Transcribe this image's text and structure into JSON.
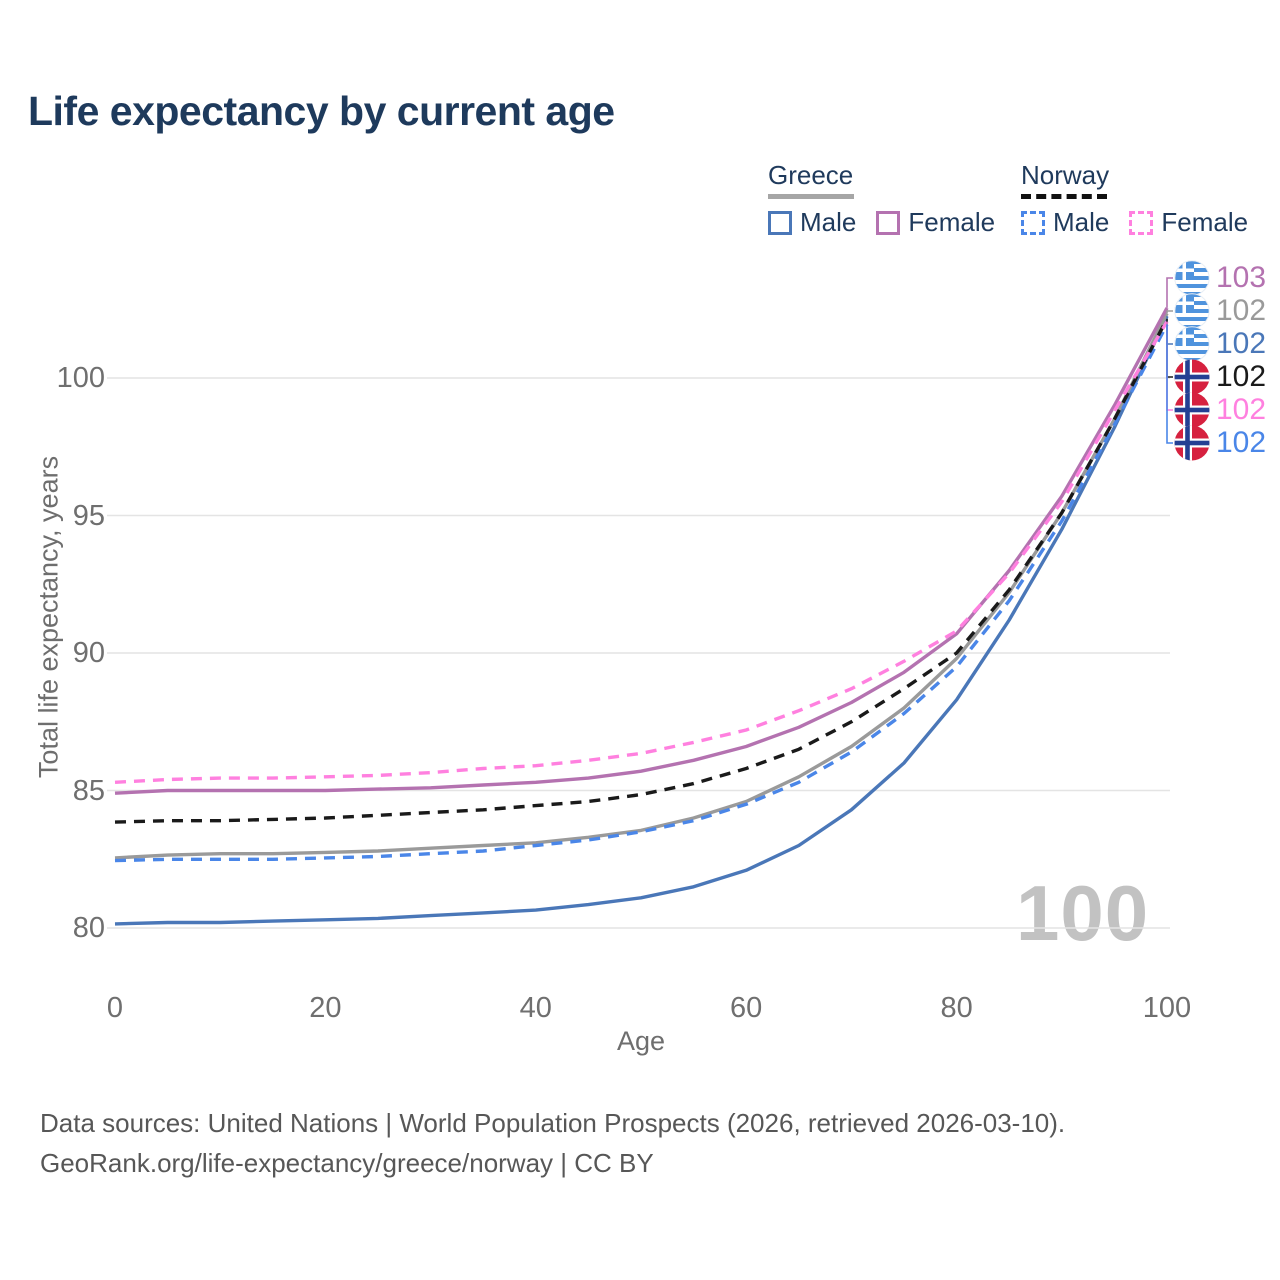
{
  "title": "Life expectancy by current age",
  "watermark": "100",
  "legend": {
    "groups": [
      {
        "name": "Greece",
        "style": "solid",
        "line_color": "#a6a6a6",
        "items": [
          {
            "label": "Male",
            "color": "#4a77b8"
          },
          {
            "label": "Female",
            "color": "#b472b0"
          }
        ]
      },
      {
        "name": "Norway",
        "style": "dashed",
        "line_color": "#111111",
        "items": [
          {
            "label": "Male",
            "color": "#4a86e8"
          },
          {
            "label": "Female",
            "color": "#ff80df"
          }
        ]
      }
    ]
  },
  "axes": {
    "x": {
      "title": "Age",
      "ticks": [
        0,
        20,
        40,
        60,
        80,
        100
      ]
    },
    "y": {
      "title": "Total life expectancy, years",
      "ticks": [
        80,
        85,
        90,
        95,
        100
      ]
    }
  },
  "chart_data": {
    "type": "line",
    "title": "Life expectancy by current age",
    "xlabel": "Age",
    "ylabel": "Total life expectancy, years",
    "xlim": [
      0,
      100
    ],
    "ylim": [
      78.5,
      103.5
    ],
    "grid": "horizontal",
    "x": [
      0,
      5,
      10,
      15,
      20,
      25,
      30,
      35,
      40,
      45,
      50,
      55,
      60,
      65,
      70,
      75,
      80,
      85,
      90,
      95,
      100
    ],
    "series": [
      {
        "name": "Greece Male",
        "country": "Greece",
        "sex": "Male",
        "color": "#4a77b8",
        "dash": "solid",
        "values": [
          80.15,
          80.2,
          80.2,
          80.25,
          80.3,
          80.35,
          80.45,
          80.55,
          80.65,
          80.85,
          81.1,
          81.5,
          82.1,
          83.0,
          84.3,
          86.0,
          88.3,
          91.2,
          94.5,
          98.2,
          102.25
        ]
      },
      {
        "name": "Greece Both sexes",
        "country": "Greece",
        "sex": "Both",
        "color": "#9a9a9a",
        "dash": "solid",
        "values": [
          82.55,
          82.65,
          82.7,
          82.7,
          82.75,
          82.8,
          82.9,
          83.0,
          83.1,
          83.3,
          83.55,
          84.0,
          84.6,
          85.5,
          86.6,
          88.0,
          89.8,
          92.2,
          95.1,
          98.5,
          102.35
        ]
      },
      {
        "name": "Greece Female",
        "country": "Greece",
        "sex": "Female",
        "color": "#b472b0",
        "dash": "solid",
        "values": [
          84.9,
          85.0,
          85.0,
          85.0,
          85.0,
          85.05,
          85.1,
          85.2,
          85.3,
          85.45,
          85.7,
          86.1,
          86.6,
          87.3,
          88.2,
          89.3,
          90.7,
          93.0,
          95.7,
          99.0,
          102.55
        ]
      },
      {
        "name": "Norway Male",
        "country": "Norway",
        "sex": "Male",
        "color": "#4a86e8",
        "dash": "dashed",
        "values": [
          82.45,
          82.5,
          82.5,
          82.5,
          82.55,
          82.6,
          82.7,
          82.8,
          83.0,
          83.2,
          83.5,
          83.9,
          84.5,
          85.3,
          86.4,
          87.8,
          89.5,
          91.9,
          94.8,
          98.3,
          101.95
        ]
      },
      {
        "name": "Norway Both sexes",
        "country": "Norway",
        "sex": "Both",
        "color": "#1a1a1a",
        "dash": "dashed",
        "values": [
          83.85,
          83.9,
          83.9,
          83.95,
          84.0,
          84.1,
          84.2,
          84.3,
          84.45,
          84.6,
          84.85,
          85.25,
          85.8,
          86.5,
          87.5,
          88.7,
          90.0,
          92.3,
          95.1,
          98.5,
          102.15
        ]
      },
      {
        "name": "Norway Female",
        "country": "Norway",
        "sex": "Female",
        "color": "#ff80df",
        "dash": "dashed",
        "values": [
          85.3,
          85.4,
          85.45,
          85.45,
          85.5,
          85.55,
          85.65,
          85.8,
          85.9,
          86.1,
          86.35,
          86.75,
          87.2,
          87.9,
          88.7,
          89.7,
          90.8,
          92.9,
          95.5,
          98.8,
          102.05
        ]
      }
    ]
  },
  "end_labels": [
    {
      "flag": "greece",
      "value": "103",
      "color": "#b472b0",
      "series_index": 2
    },
    {
      "flag": "greece",
      "value": "102",
      "color": "#9a9a9a",
      "series_index": 1
    },
    {
      "flag": "greece",
      "value": "102",
      "color": "#4a77b8",
      "series_index": 0
    },
    {
      "flag": "norway",
      "value": "102",
      "color": "#1a1a1a",
      "series_index": 4
    },
    {
      "flag": "norway",
      "value": "102",
      "color": "#ff80df",
      "series_index": 5
    },
    {
      "flag": "norway",
      "value": "102",
      "color": "#4a86e8",
      "series_index": 3
    }
  ],
  "footer": {
    "line1": "Data sources: United Nations | World Population Prospects (2026, retrieved 2026-03-10).",
    "line2": "GeoRank.org/life-expectancy/greece/norway | CC BY"
  }
}
